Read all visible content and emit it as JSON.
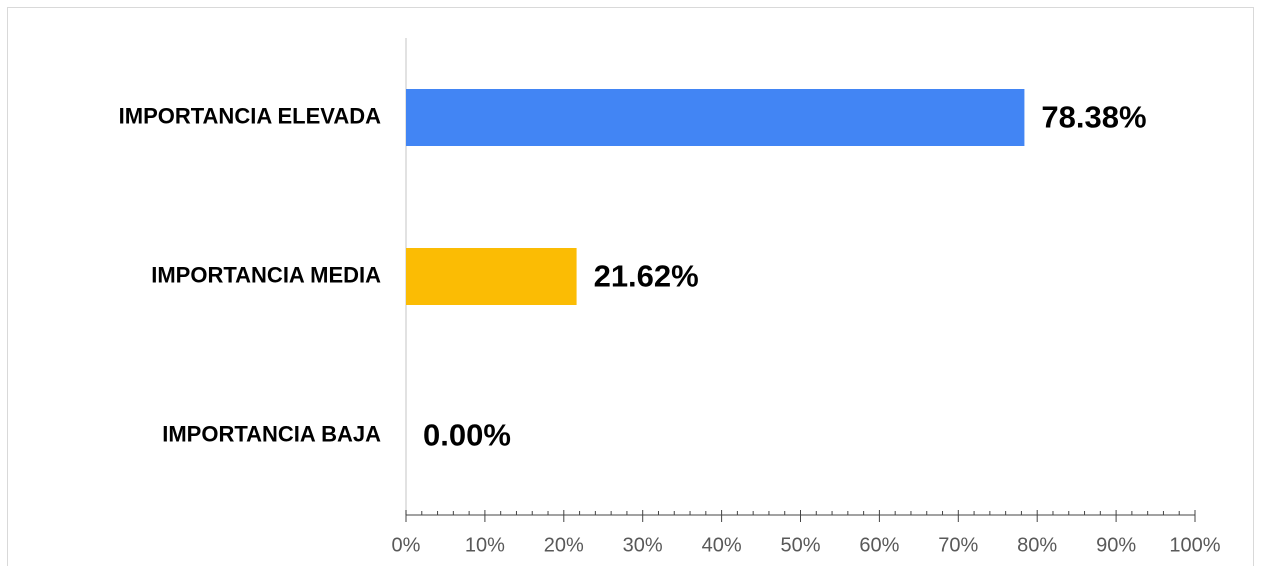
{
  "chart_data": {
    "type": "hbar",
    "categories": [
      "IMPORTANCIA ELEVADA",
      "IMPORTANCIA MEDIA",
      "IMPORTANCIA BAJA"
    ],
    "values": [
      78.38,
      21.62,
      0
    ],
    "value_labels": [
      "78.38%",
      "21.62%",
      "0.00%"
    ],
    "colors": [
      "#4285f4",
      "#fbbc04",
      "#34a853"
    ],
    "xlim": [
      0,
      100
    ],
    "xticks": [
      {
        "value": 0,
        "label": "0%"
      },
      {
        "value": 10,
        "label": "10%"
      },
      {
        "value": 20,
        "label": "20%"
      },
      {
        "value": 30,
        "label": "30%"
      },
      {
        "value": 40,
        "label": "40%"
      },
      {
        "value": 50,
        "label": "50%"
      },
      {
        "value": 60,
        "label": "60%"
      },
      {
        "value": 70,
        "label": "70%"
      },
      {
        "value": 80,
        "label": "80%"
      },
      {
        "value": 90,
        "label": "90%"
      },
      {
        "value": 100,
        "label": "100%"
      }
    ],
    "grid": false
  }
}
